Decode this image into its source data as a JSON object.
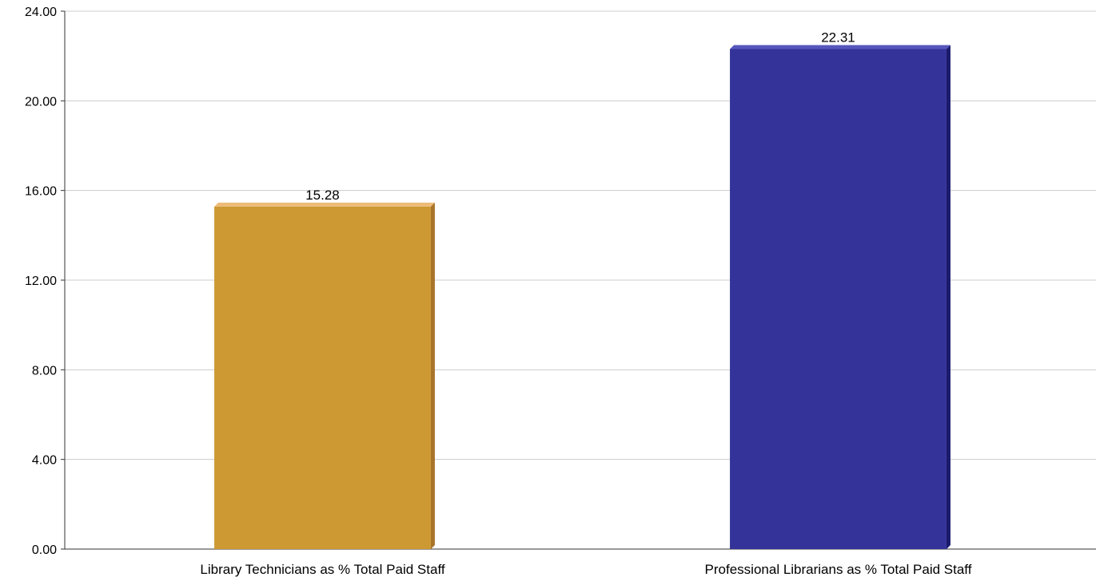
{
  "chart_data": {
    "type": "bar",
    "title": "",
    "xlabel": "",
    "ylabel": "",
    "ylim": [
      0,
      24
    ],
    "yticks": [
      "0.00",
      "4.00",
      "8.00",
      "12.00",
      "16.00",
      "20.00",
      "24.00"
    ],
    "ytick_values": [
      0,
      4,
      8,
      12,
      16,
      20,
      24
    ],
    "grid": "horizontal",
    "legend": "none",
    "categories": [
      "Library Technicians as % Total Paid Staff",
      "Professional Librarians as % Total Paid Staff"
    ],
    "values": [
      15.28,
      22.31
    ],
    "value_labels": [
      "15.28",
      "22.31"
    ],
    "colors": [
      {
        "face": "#CC9933",
        "top": "#EEBB77",
        "side": "#A8742A"
      },
      {
        "face": "#333399",
        "top": "#5555BB",
        "side": "#1A1A6E"
      }
    ]
  }
}
